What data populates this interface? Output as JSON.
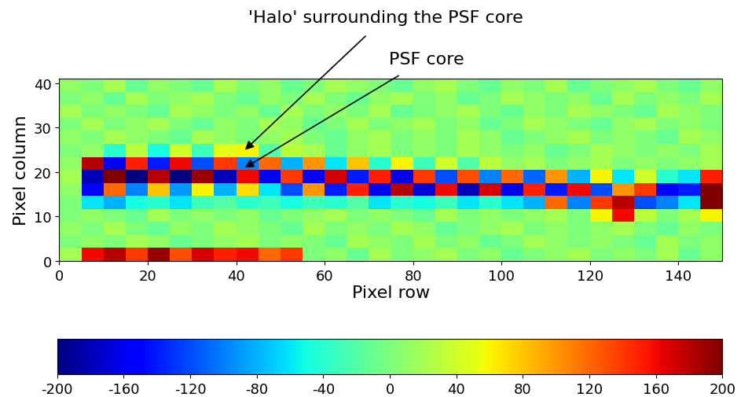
{
  "chart_data": {
    "type": "heatmap",
    "x_label": "Pixel row",
    "y_label": "Pixel column",
    "xlim": [
      0,
      150
    ],
    "ylim": [
      0,
      41
    ],
    "xticks": [
      0,
      20,
      40,
      60,
      80,
      100,
      120,
      140
    ],
    "yticks": [
      0,
      10,
      20,
      30,
      40
    ],
    "color": "jet",
    "cells": [
      [
        20,
        160,
        180,
        140,
        190,
        130,
        170,
        150,
        160,
        120,
        140,
        0,
        10,
        -10,
        20,
        0,
        10,
        20,
        0,
        10,
        -10,
        0,
        10,
        20,
        0,
        10,
        0,
        20,
        -10,
        10
      ],
      [
        0,
        10,
        0,
        20,
        10,
        -10,
        0,
        10,
        20,
        0,
        10,
        0,
        -10,
        20,
        10,
        0,
        20,
        0,
        10,
        -10,
        0,
        20,
        10,
        0,
        10,
        0,
        -10,
        20,
        0,
        10
      ],
      [
        10,
        0,
        20,
        0,
        -10,
        10,
        0,
        20,
        10,
        0,
        -10,
        20,
        0,
        10,
        0,
        20,
        10,
        -10,
        0,
        10,
        20,
        0,
        10,
        0,
        10,
        20,
        0,
        -10,
        10,
        0
      ],
      [
        0,
        10,
        0,
        -10,
        20,
        0,
        10,
        0,
        10,
        -10,
        0,
        10,
        20,
        0,
        10,
        0,
        -10,
        20,
        0,
        10,
        0,
        10,
        20,
        0,
        60,
        160,
        30,
        0,
        20,
        60
      ],
      [
        0,
        -60,
        -80,
        -50,
        -40,
        -60,
        -30,
        -20,
        -40,
        -30,
        -50,
        -30,
        -40,
        -20,
        -60,
        -40,
        -50,
        -30,
        -60,
        -40,
        -60,
        -80,
        120,
        -100,
        140,
        180,
        -120,
        -100,
        -60,
        200
      ],
      [
        10,
        -150,
        120,
        -100,
        80,
        -90,
        60,
        -80,
        70,
        -60,
        -120,
        100,
        -140,
        150,
        -160,
        180,
        -170,
        160,
        -180,
        170,
        -160,
        150,
        -140,
        160,
        -120,
        100,
        140,
        -150,
        -140,
        200
      ],
      [
        20,
        -180,
        200,
        -200,
        180,
        -200,
        190,
        -180,
        160,
        -160,
        140,
        -150,
        170,
        -140,
        150,
        -160,
        140,
        -120,
        130,
        -100,
        120,
        -110,
        100,
        -80,
        60,
        -60,
        40,
        -40,
        -60,
        150
      ],
      [
        10,
        180,
        -160,
        150,
        -140,
        160,
        -120,
        140,
        -100,
        120,
        -80,
        100,
        -60,
        80,
        -40,
        60,
        -30,
        40,
        -20,
        30,
        10,
        20,
        0,
        10,
        20,
        0,
        10,
        0,
        10,
        20
      ],
      [
        0,
        10,
        -40,
        30,
        -50,
        40,
        -30,
        50,
        60,
        -20,
        30,
        20,
        -10,
        10,
        20,
        0,
        10,
        0,
        20,
        10,
        0,
        10,
        -10,
        0,
        20,
        10,
        0,
        10,
        0,
        20
      ],
      [
        10,
        0,
        20,
        10,
        0,
        -10,
        20,
        10,
        0,
        10,
        20,
        0,
        -10,
        10,
        20,
        0,
        10,
        0,
        20,
        10,
        -10,
        0,
        10,
        20,
        0,
        10,
        0,
        -10,
        20,
        10
      ],
      [
        0,
        20,
        0,
        10,
        20,
        0,
        -10,
        10,
        0,
        20,
        10,
        -10,
        0,
        20,
        0,
        10,
        20,
        0,
        10,
        -10,
        0,
        20,
        10,
        0,
        -10,
        10,
        20,
        0,
        10,
        0
      ],
      [
        20,
        0,
        10,
        0,
        -10,
        20,
        10,
        0,
        10,
        -10,
        20,
        0,
        10,
        0,
        20,
        -10,
        0,
        10,
        20,
        0,
        -10,
        10,
        0,
        20,
        10,
        0,
        -10,
        20,
        10,
        0
      ],
      [
        0,
        10,
        -10,
        20,
        0,
        10,
        20,
        0,
        -10,
        10,
        0,
        20,
        0,
        -10,
        10,
        20,
        0,
        10,
        -10,
        0,
        20,
        10,
        0,
        10,
        -10,
        20,
        0,
        10,
        0,
        20
      ],
      [
        10,
        0,
        20,
        -10,
        10,
        0,
        -10,
        20,
        0,
        10,
        -10,
        0,
        20,
        10,
        0,
        -10,
        10,
        20,
        0,
        -10,
        10,
        0,
        20,
        -10,
        0,
        10,
        20,
        0,
        -10,
        10
      ]
    ],
    "colorbar": {
      "range": [
        -200,
        200
      ],
      "ticks": [
        -200,
        -160,
        -120,
        -80,
        -40,
        0,
        40,
        80,
        120,
        160,
        200
      ]
    },
    "annotations": [
      {
        "text": "'Halo' surrounding the PSF core",
        "x": 42,
        "y": 25
      },
      {
        "text": "PSF core",
        "x": 42,
        "y": 21
      }
    ]
  }
}
